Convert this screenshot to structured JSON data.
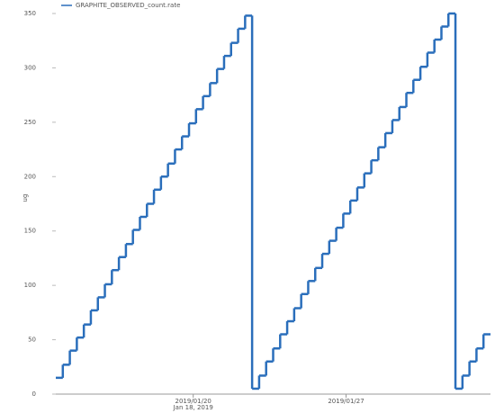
{
  "chart_data": {
    "type": "step",
    "series": [
      {
        "name": "GRAPHITE_OBSERVED_count.rate",
        "color": "#2a6ebb",
        "values": [
          15,
          27,
          40,
          52,
          64,
          77,
          89,
          101,
          114,
          126,
          138,
          151,
          163,
          175,
          188,
          200,
          212,
          225,
          237,
          249,
          262,
          274,
          286,
          299,
          311,
          323,
          336,
          348,
          5,
          17,
          30,
          42,
          55,
          67,
          79,
          92,
          104,
          116,
          129,
          141,
          153,
          166,
          178,
          190,
          203,
          215,
          227,
          240,
          252,
          264,
          277,
          289,
          301,
          314,
          326,
          338,
          350,
          5,
          17,
          30,
          42,
          55
        ]
      }
    ],
    "x": [
      0,
      1,
      2,
      3,
      4,
      5,
      6,
      7,
      8,
      9,
      10,
      11,
      12,
      13,
      14,
      15,
      16,
      17,
      18,
      19,
      20,
      21,
      22,
      23,
      24,
      25,
      26,
      27,
      28,
      29,
      30,
      31,
      32,
      33,
      34,
      35,
      36,
      37,
      38,
      39,
      40,
      41,
      42,
      43,
      44,
      45,
      46,
      47,
      48,
      49,
      50,
      51,
      52,
      53,
      54,
      55,
      56,
      57,
      58,
      59,
      60,
      61
    ],
    "xlim": [
      0,
      62
    ],
    "xticks": [
      {
        "value": 19.6,
        "label": "2019/01/20"
      },
      {
        "value": 41.4,
        "label": "2019/01/27"
      }
    ],
    "x_sublabel": "Jan 18, 2019",
    "ylabel": "ug",
    "ylim": [
      0,
      350
    ],
    "yticks": [
      0,
      50,
      100,
      150,
      200,
      250,
      300,
      350
    ]
  }
}
